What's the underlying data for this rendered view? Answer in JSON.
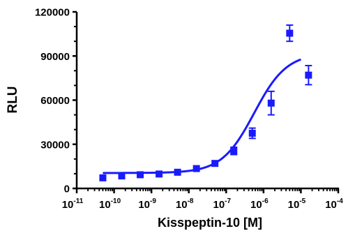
{
  "chart_data": {
    "type": "scatter",
    "xlabel": "Kisspeptin-10 [M]",
    "ylabel": "RLU",
    "x_scale": "log10",
    "xlim": [
      1e-11,
      0.0001
    ],
    "ylim": [
      0,
      120000
    ],
    "x_tick_labels": [
      {
        "base": "10",
        "exp": "-11"
      },
      {
        "base": "10",
        "exp": "-10"
      },
      {
        "base": "10",
        "exp": "-9"
      },
      {
        "base": "10",
        "exp": "-8"
      },
      {
        "base": "10",
        "exp": "-7"
      },
      {
        "base": "10",
        "exp": "-6"
      },
      {
        "base": "10",
        "exp": "-5"
      },
      {
        "base": "10",
        "exp": "-4"
      }
    ],
    "y_ticks": [
      0,
      30000,
      60000,
      90000,
      120000
    ],
    "y_tick_labels": [
      "0",
      "30000",
      "60000",
      "90000",
      "120000"
    ],
    "grid": false,
    "color": "#1a1aff",
    "points": [
      {
        "x": 5e-11,
        "y": 7200,
        "err": 0
      },
      {
        "x": 1.6e-10,
        "y": 8500,
        "err": 0
      },
      {
        "x": 5e-10,
        "y": 9300,
        "err": 0
      },
      {
        "x": 1.6e-09,
        "y": 9800,
        "err": 0
      },
      {
        "x": 5e-09,
        "y": 11000,
        "err": 0
      },
      {
        "x": 1.6e-08,
        "y": 13500,
        "err": 0
      },
      {
        "x": 5e-08,
        "y": 17000,
        "err": 0
      },
      {
        "x": 1.6e-07,
        "y": 25500,
        "err": 2500
      },
      {
        "x": 5e-07,
        "y": 37500,
        "err": 3500
      },
      {
        "x": 1.6e-06,
        "y": 58000,
        "err": 8000
      },
      {
        "x": 5e-06,
        "y": 105500,
        "err": 5500
      },
      {
        "x": 1.6e-05,
        "y": 77000,
        "err": 6500
      }
    ],
    "fit": {
      "model": "sigmoidal dose-response",
      "bottom": 10500,
      "top": 92000,
      "log_ec50": -6.25,
      "hill": 1,
      "x_range": [
        5e-11,
        1e-05
      ]
    }
  }
}
